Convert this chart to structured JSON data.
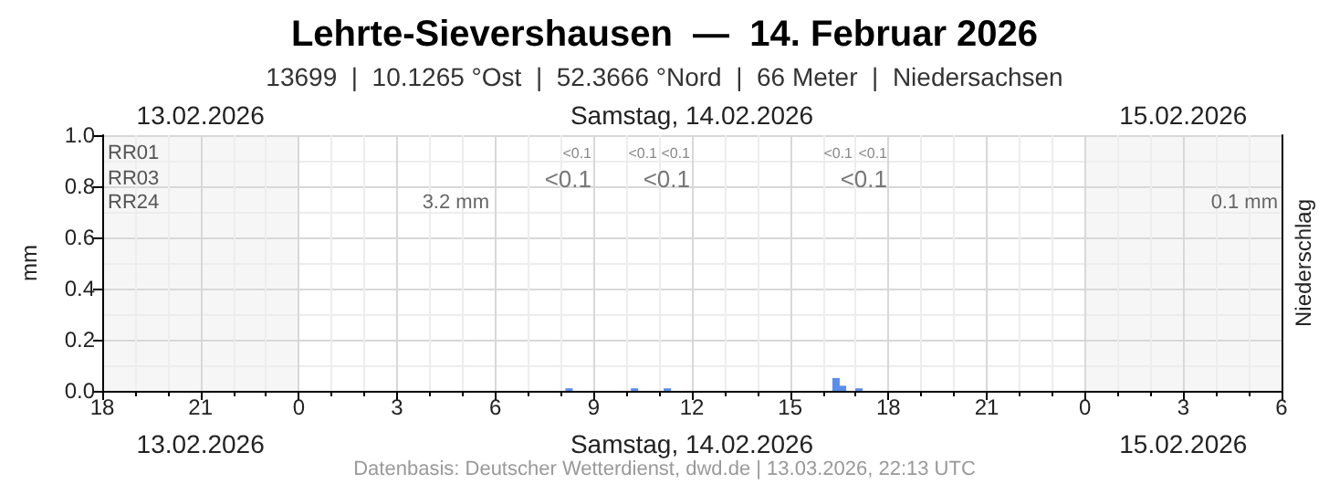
{
  "chart_data": {
    "type": "bar",
    "title": "Lehrte-Sievershausen  —  14. Februar 2026",
    "subtitle": "13699  |  10.1265 °Ost  |  52.3666 °Nord  |  66 Meter  |  Niedersachsen",
    "ylabel": "mm",
    "y2label": "Niederschlag",
    "x": [
      "2026-02-14T08:15",
      "2026-02-14T10:15",
      "2026-02-14T11:15",
      "2026-02-14T16:24",
      "2026-02-14T16:36",
      "2026-02-14T17:06"
    ],
    "series": [
      {
        "color": "#5b8def",
        "values": [
          0.01,
          0.01,
          0.01,
          0.05,
          0.02,
          0.01
        ]
      }
    ],
    "xlim": [
      "2026-02-13T18:00",
      "2026-02-15T06:00"
    ],
    "xticks": [
      {
        "value": "2026-02-13T18:00",
        "label": "18"
      },
      {
        "value": "2026-02-13T21:00",
        "label": "21"
      },
      {
        "value": "2026-02-14T00:00",
        "label": "0"
      },
      {
        "value": "2026-02-14T03:00",
        "label": "3"
      },
      {
        "value": "2026-02-14T06:00",
        "label": "6"
      },
      {
        "value": "2026-02-14T09:00",
        "label": "9"
      },
      {
        "value": "2026-02-14T12:00",
        "label": "12"
      },
      {
        "value": "2026-02-14T15:00",
        "label": "15"
      },
      {
        "value": "2026-02-14T18:00",
        "label": "18"
      },
      {
        "value": "2026-02-14T21:00",
        "label": "21"
      },
      {
        "value": "2026-02-15T00:00",
        "label": "0"
      },
      {
        "value": "2026-02-15T03:00",
        "label": "3"
      },
      {
        "value": "2026-02-15T06:00",
        "label": "6"
      }
    ],
    "x2lim": [
      "2026-02-13T18:00",
      "2026-02-15T06:00"
    ],
    "x2ticks": [
      {
        "value": "2026-02-13T21:00",
        "label": "13.02.2026"
      },
      {
        "value": "2026-02-14T12:00",
        "label": "Samstag, 14.02.2026"
      },
      {
        "value": "2026-02-15T03:00",
        "label": "15.02.2026"
      }
    ],
    "ylim": [
      0,
      1
    ],
    "yticks": [
      {
        "value": 0,
        "label": "0.0"
      },
      {
        "value": 0.2,
        "label": "0.2"
      },
      {
        "value": 0.4,
        "label": "0.4"
      },
      {
        "value": 0.6,
        "label": "0.6"
      },
      {
        "value": 0.8,
        "label": "0.8"
      },
      {
        "value": 1,
        "label": "1.0"
      }
    ],
    "grid": true,
    "bands": [
      {
        "axis": "x",
        "from": "2026-02-13T18:00",
        "to": "2026-02-14T00:00",
        "color": "#f6f6f6"
      },
      {
        "axis": "x",
        "from": "2026-02-15T00:00",
        "to": "2026-02-15T06:00",
        "color": "#f6f6f6"
      }
    ],
    "annotations": [
      "RR01",
      "RR03",
      "RR24",
      "<0.1",
      "<0.1",
      "<0.1",
      "<0.1",
      "<0.1",
      "<0.1",
      "<0.1",
      "<0.1",
      "3.2 mm",
      "0.1 mm",
      "Datenbasis: Deutscher Wetterdienst, dwd.de | 13.03.2026, 22:13 UTC"
    ]
  }
}
